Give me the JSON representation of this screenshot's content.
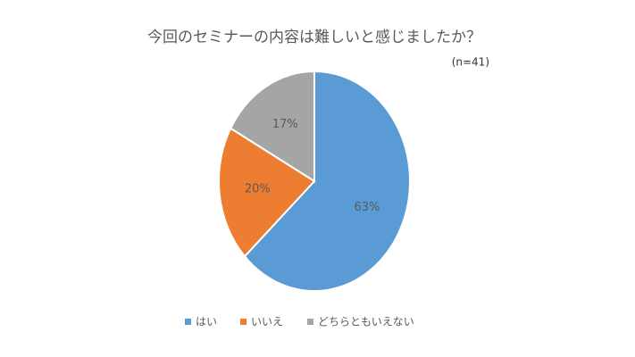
{
  "chart_data": {
    "type": "pie",
    "title": "今回のセミナーの内容は難しいと感じましたか？",
    "subtitle": "(n=41)",
    "categories": [
      "はい",
      "いいえ",
      "どちらともいえない"
    ],
    "values": [
      63,
      20,
      17
    ],
    "value_labels": [
      "63%",
      "20%",
      "17%"
    ],
    "colors": [
      "#5b9bd5",
      "#ed7d31",
      "#a5a5a5"
    ],
    "legend": "bottom"
  }
}
